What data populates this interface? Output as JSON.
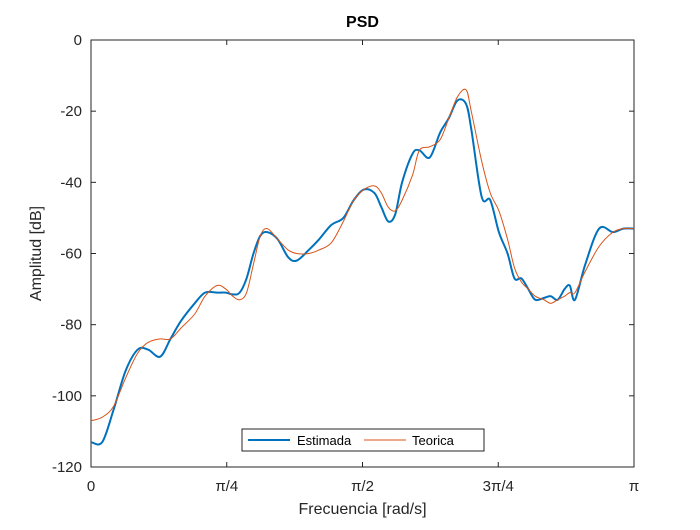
{
  "chart_data": {
    "type": "line",
    "title": "PSD",
    "xlabel": "Frecuencia [rad/s]",
    "ylabel": "Amplitud [dB]",
    "xlim": [
      0,
      3.14159
    ],
    "ylim": [
      -120,
      0
    ],
    "x_ticks": [
      0,
      0.7854,
      1.5708,
      2.3562,
      3.14159
    ],
    "x_tick_labels": [
      "0",
      "π/4",
      "π/2",
      "3π/4",
      "π"
    ],
    "y_ticks": [
      0,
      -20,
      -40,
      -60,
      -80,
      -100,
      -120
    ],
    "y_tick_labels": [
      "0",
      "-20",
      "-40",
      "-60",
      "-80",
      "-100",
      "-120"
    ],
    "grid": false,
    "legend_location": "south",
    "x": [
      0,
      0.065,
      0.13,
      0.2,
      0.27,
      0.33,
      0.4,
      0.46,
      0.52,
      0.6,
      0.66,
      0.73,
      0.78,
      0.82,
      0.86,
      0.9,
      0.94,
      0.98,
      1.02,
      1.08,
      1.14,
      1.19,
      1.26,
      1.32,
      1.39,
      1.46,
      1.52,
      1.58,
      1.64,
      1.68,
      1.72,
      1.76,
      1.8,
      1.86,
      1.9,
      1.96,
      2.02,
      2.07,
      2.12,
      2.17,
      2.2,
      2.26,
      2.31,
      2.36,
      2.41,
      2.45,
      2.49,
      2.53,
      2.57,
      2.62,
      2.66,
      2.7,
      2.74,
      2.77,
      2.8,
      2.86,
      2.94,
      3.02,
      3.08,
      3.14159
    ],
    "series": [
      {
        "name": "Estimada",
        "color": "#0072BD",
        "values": [
          -113,
          -113,
          -104,
          -93,
          -87,
          -87,
          -89,
          -84,
          -79,
          -74,
          -71,
          -71,
          -71,
          -71.5,
          -71,
          -67,
          -60,
          -55,
          -54,
          -56,
          -61,
          -62,
          -59,
          -56,
          -52,
          -50,
          -45,
          -42,
          -43,
          -47,
          -51,
          -49,
          -40,
          -32,
          -31,
          -33,
          -26,
          -22,
          -17,
          -18,
          -25,
          -44,
          -45,
          -54,
          -60,
          -67,
          -67,
          -70,
          -73,
          -72.5,
          -72,
          -73,
          -70,
          -69,
          -73,
          -63,
          -53,
          -54,
          -53,
          -53
        ]
      },
      {
        "name": "Teorica",
        "color": "#D95319",
        "values": [
          -107,
          -106,
          -103,
          -95,
          -88,
          -85,
          -84,
          -84,
          -81,
          -77,
          -72,
          -69,
          -70,
          -72,
          -73,
          -71,
          -63,
          -55,
          -53,
          -56,
          -59,
          -60,
          -60,
          -59,
          -57,
          -51,
          -45,
          -42,
          -41,
          -43,
          -47,
          -48,
          -45,
          -38,
          -31,
          -30,
          -28,
          -22,
          -16,
          -14,
          -20,
          -34,
          -43,
          -48,
          -56,
          -64,
          -68,
          -70,
          -72,
          -73,
          -74,
          -73,
          -72,
          -71,
          -71,
          -65,
          -58,
          -54,
          -53,
          -53
        ]
      }
    ]
  }
}
